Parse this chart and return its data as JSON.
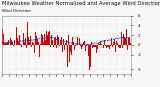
{
  "title": "Milwaukee Weather Normalized and Average Wind Direction (Last 24 Hours)",
  "subtitle": "Wind Direction",
  "bg_color": "#f8f8f8",
  "plot_bg_color": "#f8f8f8",
  "bar_color": "#dd0000",
  "line_color": "#0000ee",
  "grid_color": "#cccccc",
  "n_points": 288,
  "ylim": [
    -6,
    6
  ],
  "ytick_vals": [
    6,
    4,
    2,
    0,
    -2,
    -5
  ],
  "ytick_labels": [
    "6",
    "4",
    "2",
    "0",
    "-2",
    "-5"
  ],
  "title_fontsize": 3.8,
  "tick_fontsize": 2.8,
  "seed": 99,
  "spike_indices": [
    145,
    146,
    195,
    196,
    197
  ],
  "spike_values": [
    -5.0,
    -4.6,
    -5.2,
    -4.8,
    -4.5
  ],
  "n_xticks": 20
}
